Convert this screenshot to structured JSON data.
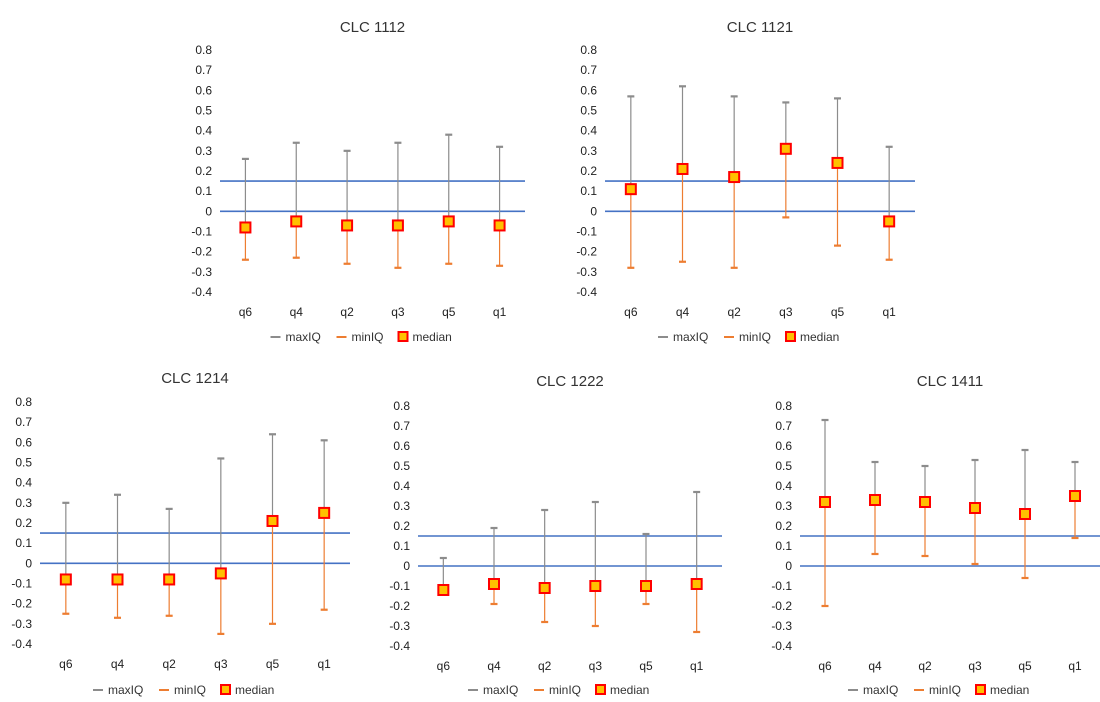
{
  "chart_data": [
    {
      "type": "scatter",
      "title": "CLC 1112",
      "categories": [
        "q6",
        "q4",
        "q2",
        "q3",
        "q5",
        "q1"
      ],
      "ylim": [
        -0.4,
        0.8
      ],
      "yticks": [
        "0.8",
        "0.7",
        "0.6",
        "0.5",
        "0.4",
        "0.3",
        "0.2",
        "0.1",
        "0",
        "-0.1",
        "-0.2",
        "-0.3",
        "-0.4"
      ],
      "reference_lines": [
        0,
        0.15
      ],
      "series": [
        {
          "name": "maxIQ",
          "values": [
            0.26,
            0.34,
            0.3,
            0.34,
            0.38,
            0.32
          ]
        },
        {
          "name": "minIQ",
          "values": [
            -0.24,
            -0.23,
            -0.26,
            -0.28,
            -0.26,
            -0.27
          ]
        },
        {
          "name": "median",
          "values": [
            -0.08,
            -0.05,
            -0.07,
            -0.07,
            -0.05,
            -0.07
          ]
        }
      ]
    },
    {
      "type": "scatter",
      "title": "CLC 1121",
      "categories": [
        "q6",
        "q4",
        "q2",
        "q3",
        "q5",
        "q1"
      ],
      "ylim": [
        -0.4,
        0.8
      ],
      "yticks": [
        "0.8",
        "0.7",
        "0.6",
        "0.5",
        "0.4",
        "0.3",
        "0.2",
        "0.1",
        "0",
        "-0.1",
        "-0.2",
        "-0.3",
        "-0.4"
      ],
      "reference_lines": [
        0,
        0.15
      ],
      "series": [
        {
          "name": "maxIQ",
          "values": [
            0.57,
            0.62,
            0.57,
            0.54,
            0.56,
            0.32
          ]
        },
        {
          "name": "minIQ",
          "values": [
            -0.28,
            -0.25,
            -0.28,
            -0.03,
            -0.17,
            -0.24
          ]
        },
        {
          "name": "median",
          "values": [
            0.11,
            0.21,
            0.17,
            0.31,
            0.24,
            -0.05
          ]
        }
      ]
    },
    {
      "type": "scatter",
      "title": "CLC 1214",
      "categories": [
        "q6",
        "q4",
        "q2",
        "q3",
        "q5",
        "q1"
      ],
      "ylim": [
        -0.4,
        0.8
      ],
      "yticks": [
        "0.8",
        "0.7",
        "0.6",
        "0.5",
        "0.4",
        "0.3",
        "0.2",
        "0.1",
        "0",
        "-0.1",
        "-0.2",
        "-0.3",
        "-0.4"
      ],
      "reference_lines": [
        0,
        0.15
      ],
      "series": [
        {
          "name": "maxIQ",
          "values": [
            0.3,
            0.34,
            0.27,
            0.52,
            0.64,
            0.61
          ]
        },
        {
          "name": "minIQ",
          "values": [
            -0.25,
            -0.27,
            -0.26,
            -0.35,
            -0.3,
            -0.23
          ]
        },
        {
          "name": "median",
          "values": [
            -0.08,
            -0.08,
            -0.08,
            -0.05,
            0.21,
            0.25
          ]
        }
      ]
    },
    {
      "type": "scatter",
      "title": "CLC 1222",
      "categories": [
        "q6",
        "q4",
        "q2",
        "q3",
        "q5",
        "q1"
      ],
      "ylim": [
        -0.4,
        0.8
      ],
      "yticks": [
        "0.8",
        "0.7",
        "0.6",
        "0.5",
        "0.4",
        "0.3",
        "0.2",
        "0.1",
        "0",
        "-0.1",
        "-0.2",
        "-0.3",
        "-0.4"
      ],
      "reference_lines": [
        0,
        0.15
      ],
      "series": [
        {
          "name": "maxIQ",
          "values": [
            0.04,
            0.19,
            0.28,
            0.32,
            0.16,
            0.37
          ]
        },
        {
          "name": "minIQ",
          "values": [
            -0.13,
            -0.19,
            -0.28,
            -0.3,
            -0.19,
            -0.33
          ]
        },
        {
          "name": "median",
          "values": [
            -0.12,
            -0.09,
            -0.11,
            -0.1,
            -0.1,
            -0.09
          ]
        }
      ]
    },
    {
      "type": "scatter",
      "title": "CLC 1411",
      "categories": [
        "q6",
        "q4",
        "q2",
        "q3",
        "q5",
        "q1"
      ],
      "ylim": [
        -0.4,
        0.8
      ],
      "yticks": [
        "0.8",
        "0.7",
        "0.6",
        "0.5",
        "0.4",
        "0.3",
        "0.2",
        "0.1",
        "0",
        "-0.1",
        "-0.2",
        "-0.3",
        "-0.4"
      ],
      "reference_lines": [
        0,
        0.15
      ],
      "series": [
        {
          "name": "maxIQ",
          "values": [
            0.73,
            0.52,
            0.5,
            0.53,
            0.58,
            0.52
          ]
        },
        {
          "name": "minIQ",
          "values": [
            -0.2,
            0.06,
            0.05,
            0.01,
            -0.06,
            0.14
          ]
        },
        {
          "name": "median",
          "values": [
            0.32,
            0.33,
            0.32,
            0.29,
            0.26,
            0.35
          ]
        }
      ]
    }
  ],
  "colors": {
    "maxIQ": "#8c8c8c",
    "minIQ": "#ed7d31",
    "median_fill": "#ffc000",
    "median_edge": "#ff0000",
    "reference_line": "#4472c4"
  }
}
